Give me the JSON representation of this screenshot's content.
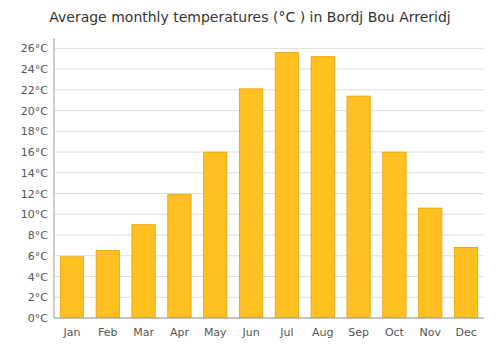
{
  "chart_data": {
    "type": "bar",
    "title": "Average monthly temperatures (°C ) in Bordj Bou Arreridj",
    "categories": [
      "Jan",
      "Feb",
      "Mar",
      "Apr",
      "May",
      "Jun",
      "Jul",
      "Aug",
      "Sep",
      "Oct",
      "Nov",
      "Dec"
    ],
    "values": [
      5.9,
      6.5,
      9.0,
      11.9,
      16.0,
      22.1,
      25.6,
      25.2,
      21.4,
      16.0,
      10.6,
      6.8
    ],
    "color": "#FFC020",
    "ylim": [
      0,
      27
    ],
    "yticks": [
      {
        "value": 0,
        "label": "0°C"
      },
      {
        "value": 2,
        "label": "2°C"
      },
      {
        "value": 4,
        "label": "4°C"
      },
      {
        "value": 6,
        "label": "6°C"
      },
      {
        "value": 8,
        "label": "8°C"
      },
      {
        "value": 10,
        "label": "10°C"
      },
      {
        "value": 12,
        "label": "12°C"
      },
      {
        "value": 14,
        "label": "14°C"
      },
      {
        "value": 16,
        "label": "16°C"
      },
      {
        "value": 18,
        "label": "18°C"
      },
      {
        "value": 20,
        "label": "20°C"
      },
      {
        "value": 22,
        "label": "22°C"
      },
      {
        "value": 24,
        "label": "24°C"
      },
      {
        "value": 26,
        "label": "26°C"
      }
    ],
    "grid": true
  }
}
